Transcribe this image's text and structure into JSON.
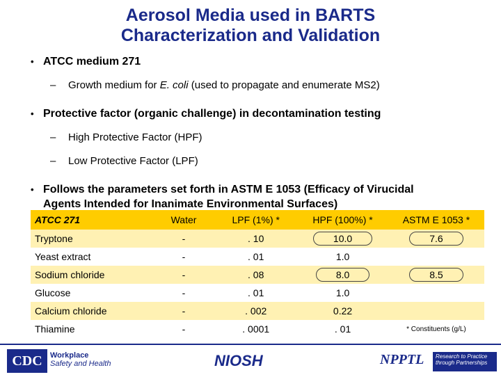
{
  "title": [
    "Aerosol Media used in BARTS",
    "Characterization and Validation"
  ],
  "bullets": {
    "b1": "ATCC medium 271",
    "b1_sub": {
      "pre": "Growth medium for ",
      "italic": "E. coli",
      "post": " (used to propagate and enumerate MS2)"
    },
    "b2": "Protective factor (organic challenge) in decontamination testing",
    "b2_sub1": "High Protective Factor (HPF)",
    "b2_sub2": "Low Protective Factor (LPF)",
    "b3_line1": "Follows the parameters set forth in ASTM E 1053 (Efficacy of Virucidal",
    "b3_line2": "Agents Intended for Inanimate Environmental Surfaces)"
  },
  "table": {
    "headers": [
      "ATCC 271",
      "Water",
      "LPF (1%) *",
      "HPF (100%) *",
      "ASTM E 1053 *"
    ],
    "rows": [
      [
        "Tryptone",
        "-",
        ". 10",
        "10.0",
        "7.6"
      ],
      [
        "Yeast extract",
        "-",
        ". 01",
        "1.0",
        ""
      ],
      [
        "Sodium chloride",
        "-",
        ". 08",
        "8.0",
        "8.5"
      ],
      [
        "Glucose",
        "-",
        ". 01",
        "1.0",
        ""
      ],
      [
        "Calcium chloride",
        "-",
        ". 002",
        "0.22",
        ""
      ],
      [
        "Thiamine",
        "-",
        ". 0001",
        ". 01",
        "* Constituents (g/L)"
      ]
    ]
  },
  "footer": {
    "cdc": "CDC",
    "workplace": "Workplace",
    "safety": "Safety and Health",
    "niosh": "NIOSH",
    "npptl": "NPPTL",
    "npptl_tag": [
      "Research to Practice",
      "through Partnerships"
    ]
  },
  "colors": {
    "title": "#1a2a8a",
    "header_fill": "#ffcc00",
    "band_fill": "#fff1b3"
  }
}
